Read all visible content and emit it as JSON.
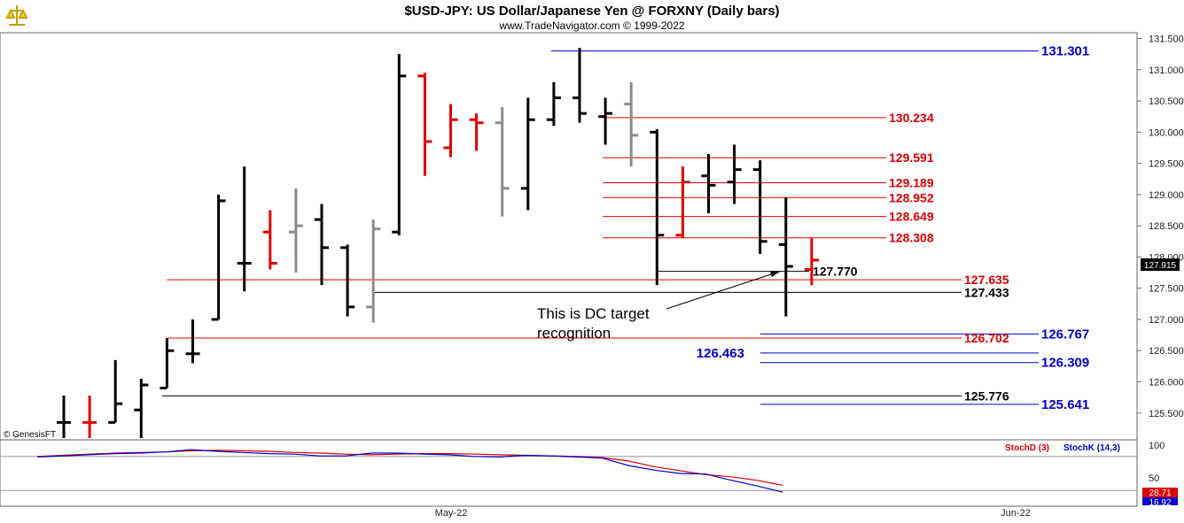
{
  "header": {
    "title": "$USD-JPY:  US Dollar/Japanese Yen @ FORXNY  (Daily bars)",
    "subtitle": "www.TradeNavigator.com © 1999-2022"
  },
  "watermark": "© GenesisFT",
  "current_price_label": "127.915",
  "annotation": {
    "line1": "This is DC target",
    "line2": "recognition"
  },
  "x_labels": [
    "May-22",
    "Jun-22"
  ],
  "chart_data": {
    "type": "bar",
    "subtype": "ohlc",
    "title": "$USD-JPY:  US Dollar/Japanese Yen @ FORXNY  (Daily bars)",
    "ylim": [
      125.1,
      131.55
    ],
    "y_ticks": [
      "131.500",
      "131.000",
      "130.500",
      "130.000",
      "129.500",
      "129.000",
      "128.500",
      "128.000",
      "127.500",
      "127.000",
      "126.500",
      "126.000",
      "125.500"
    ],
    "colors": {
      "up": "#000000",
      "down": "#e00000",
      "neutral": "#8c8c8c"
    },
    "bars": [
      {
        "o": 125.35,
        "h": 125.78,
        "l": 125.1,
        "c": 125.35,
        "col": "k"
      },
      {
        "o": 125.35,
        "h": 125.78,
        "l": 125.1,
        "c": 125.35,
        "col": "r"
      },
      {
        "o": 125.35,
        "h": 126.35,
        "l": 125.35,
        "c": 125.65,
        "col": "k"
      },
      {
        "o": 125.55,
        "h": 126.05,
        "l": 125.1,
        "c": 125.95,
        "col": "k"
      },
      {
        "o": 125.9,
        "h": 126.7,
        "l": 125.9,
        "c": 126.5,
        "col": "k"
      },
      {
        "o": 126.45,
        "h": 127.0,
        "l": 126.3,
        "c": 126.45,
        "col": "k"
      },
      {
        "o": 127.0,
        "h": 129.0,
        "l": 127.0,
        "c": 128.9,
        "col": "k"
      },
      {
        "o": 127.9,
        "h": 129.45,
        "l": 127.45,
        "c": 127.9,
        "col": "k"
      },
      {
        "o": 128.4,
        "h": 128.75,
        "l": 127.8,
        "c": 127.9,
        "col": "r"
      },
      {
        "o": 128.4,
        "h": 129.1,
        "l": 127.75,
        "c": 128.5,
        "col": "g"
      },
      {
        "o": 128.6,
        "h": 128.85,
        "l": 127.55,
        "c": 128.15,
        "col": "k"
      },
      {
        "o": 128.15,
        "h": 128.2,
        "l": 127.05,
        "c": 127.2,
        "col": "k"
      },
      {
        "o": 127.2,
        "h": 128.6,
        "l": 126.95,
        "c": 128.45,
        "col": "g"
      },
      {
        "o": 128.4,
        "h": 131.25,
        "l": 128.35,
        "c": 130.9,
        "col": "k"
      },
      {
        "o": 130.9,
        "h": 130.95,
        "l": 129.3,
        "c": 129.85,
        "col": "r"
      },
      {
        "o": 129.75,
        "h": 130.45,
        "l": 129.6,
        "c": 130.2,
        "col": "r"
      },
      {
        "o": 130.2,
        "h": 130.3,
        "l": 129.7,
        "c": 130.15,
        "col": "r"
      },
      {
        "o": 130.15,
        "h": 130.4,
        "l": 128.65,
        "c": 129.1,
        "col": "g"
      },
      {
        "o": 129.1,
        "h": 130.55,
        "l": 128.75,
        "c": 130.2,
        "col": "k"
      },
      {
        "o": 130.2,
        "h": 130.8,
        "l": 130.1,
        "c": 130.55,
        "col": "k"
      },
      {
        "o": 130.55,
        "h": 131.35,
        "l": 130.15,
        "c": 130.3,
        "col": "k"
      },
      {
        "o": 130.25,
        "h": 130.55,
        "l": 129.8,
        "c": 130.3,
        "col": "k"
      },
      {
        "o": 130.45,
        "h": 130.8,
        "l": 129.45,
        "c": 129.95,
        "col": "g"
      },
      {
        "o": 130.0,
        "h": 130.05,
        "l": 127.55,
        "c": 128.35,
        "col": "k"
      },
      {
        "o": 128.35,
        "h": 129.45,
        "l": 128.3,
        "c": 129.2,
        "col": "r"
      },
      {
        "o": 129.3,
        "h": 129.65,
        "l": 128.7,
        "c": 129.15,
        "col": "k"
      },
      {
        "o": 129.2,
        "h": 129.8,
        "l": 128.85,
        "c": 129.4,
        "col": "k"
      },
      {
        "o": 129.4,
        "h": 129.55,
        "l": 128.05,
        "c": 128.25,
        "col": "k"
      },
      {
        "o": 128.2,
        "h": 128.95,
        "l": 127.05,
        "c": 127.85,
        "col": "k"
      },
      {
        "o": 127.8,
        "h": 128.3,
        "l": 127.55,
        "c": 127.95,
        "col": "r"
      }
    ],
    "levels": [
      {
        "value": 131.301,
        "label": "131.301",
        "color": "#0000cc",
        "bold_large": true,
        "from_bar": 18.9
      },
      {
        "value": 130.234,
        "label": "130.234",
        "color": "#e00000",
        "from_bar": 20.9
      },
      {
        "value": 129.591,
        "label": "129.591",
        "color": "#e00000",
        "from_bar": 20.9
      },
      {
        "value": 129.189,
        "label": "129.189",
        "color": "#e00000",
        "from_bar": 20.9
      },
      {
        "value": 128.952,
        "label": "128.952",
        "color": "#e00000",
        "from_bar": 20.9
      },
      {
        "value": 128.649,
        "label": "128.649",
        "color": "#e00000",
        "from_bar": 20.9
      },
      {
        "value": 128.308,
        "label": "128.308",
        "color": "#e00000",
        "from_bar": 20.9
      },
      {
        "value": 127.77,
        "label": "127.770",
        "color": "#000000",
        "from_bar": 23.0,
        "to_bar": 28.9
      },
      {
        "value": 127.635,
        "label": "127.635",
        "color": "#e00000",
        "from_bar": 4.0
      },
      {
        "value": 127.433,
        "label": "127.433",
        "color": "#000000",
        "from_bar": 12.0
      },
      {
        "value": 126.767,
        "label": "126.767",
        "color": "#0000cc",
        "bold_large": true,
        "from_bar": 27.0
      },
      {
        "value": 126.702,
        "label": "126.702",
        "color": "#e00000",
        "from_bar": 4.0
      },
      {
        "value": 126.463,
        "label": "126.463",
        "color": "#0000cc",
        "bold_large": true,
        "label_left": true,
        "from_bar": 27.0
      },
      {
        "value": 126.309,
        "label": "126.309",
        "color": "#0000cc",
        "bold_large": true,
        "from_bar": 27.0
      },
      {
        "value": 125.776,
        "label": "125.776",
        "color": "#000000",
        "from_bar": 3.8
      },
      {
        "value": 125.641,
        "label": "125.641",
        "color": "#0000cc",
        "bold_large": true,
        "from_bar": 27.0
      }
    ],
    "stochastic": {
      "label_d": "StochD (3)",
      "label_k": "StochK (14,3)",
      "ylim": [
        0,
        100
      ],
      "y_ticks": [
        "100",
        "50"
      ],
      "last_d": "28.71",
      "last_k": "16.92",
      "d": [
        80,
        82,
        84,
        86,
        87,
        88,
        90,
        91,
        90,
        89,
        87,
        86,
        84,
        83,
        84,
        85,
        85,
        84,
        83,
        82,
        81,
        80,
        78,
        72,
        62,
        55,
        48,
        44,
        38,
        29
      ],
      "k": [
        79,
        81,
        83,
        85,
        86,
        88,
        92,
        89,
        87,
        85,
        84,
        81,
        81,
        86,
        86,
        84,
        83,
        80,
        79,
        82,
        81,
        79,
        77,
        64,
        56,
        50,
        49,
        38,
        28,
        17
      ]
    }
  }
}
